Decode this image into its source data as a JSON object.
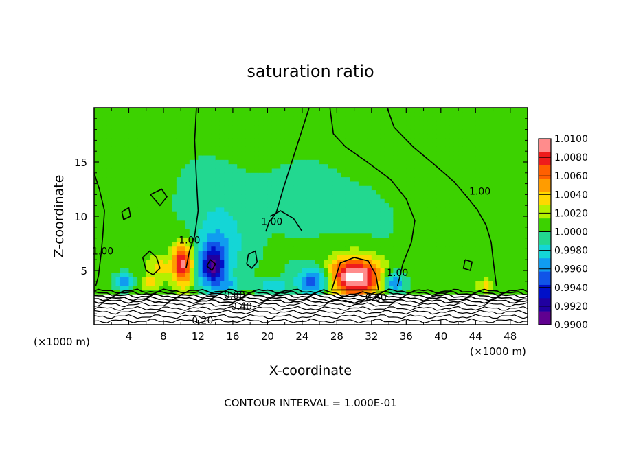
{
  "chart_data": {
    "type": "heatmap",
    "title": "saturation ratio",
    "xlabel": "X-coordinate",
    "ylabel": "Z-coordinate",
    "xunit_left": "(×1000 m)",
    "xunit_right": "(×1000 m)",
    "footer": "CONTOUR INTERVAL = 1.000E-01",
    "xlim": [
      0,
      50
    ],
    "ylim": [
      0,
      20
    ],
    "xticks": [
      4,
      8,
      12,
      16,
      20,
      24,
      28,
      32,
      36,
      40,
      44,
      48
    ],
    "xtick_labels": [
      "4",
      "8",
      "12",
      "16",
      "20",
      "24",
      "28",
      "32",
      "36",
      "40",
      "44",
      "48"
    ],
    "yticks": [
      5,
      10,
      15
    ],
    "ytick_labels": [
      "5",
      "10",
      "15"
    ],
    "colorbar": {
      "labels": [
        "1.0100",
        "1.0080",
        "1.0060",
        "1.0040",
        "1.0020",
        "1.0000",
        "0.9980",
        "0.9960",
        "0.9940",
        "0.9920",
        "0.9900"
      ],
      "colors": [
        "#ff8c8c",
        "#ee1c1c",
        "#ff6000",
        "#ff9c00",
        "#ffd800",
        "#b4f000",
        "#3cd200",
        "#22d890",
        "#14d6d6",
        "#109cf0",
        "#1054e8",
        "#0010c8",
        "#2000a0",
        "#600090"
      ]
    },
    "background_value": 1.0005,
    "features": [
      {
        "kind": "max",
        "x": 10.2,
        "z": 5.8,
        "value": 1.008
      },
      {
        "kind": "max",
        "x": 30.0,
        "z": 4.8,
        "value": 1.01
      },
      {
        "kind": "min",
        "x": 13.6,
        "z": 5.6,
        "value": 0.994
      },
      {
        "kind": "min",
        "x": 25.5,
        "z": 4.4,
        "value": 0.995
      },
      {
        "kind": "min",
        "x": 34.5,
        "z": 4.2,
        "value": 0.996
      },
      {
        "kind": "min",
        "x": 3.5,
        "z": 4.5,
        "value": 0.996
      }
    ],
    "contour_labels": [
      {
        "text": "1.00",
        "x": 1.0,
        "z": 6.5
      },
      {
        "text": "1.00",
        "x": 11.0,
        "z": 7.5
      },
      {
        "text": "1.00",
        "x": 20.5,
        "z": 9.2
      },
      {
        "text": "1.00",
        "x": 44.5,
        "z": 12.0
      },
      {
        "text": "1.00",
        "x": 35.0,
        "z": 4.5
      },
      {
        "text": "0.80",
        "x": 16.2,
        "z": 2.4
      },
      {
        "text": "0.60",
        "x": 32.5,
        "z": 2.2
      },
      {
        "text": "0.40",
        "x": 17.0,
        "z": 1.4
      },
      {
        "text": "0.20",
        "x": 12.5,
        "z": 0.1
      }
    ]
  }
}
